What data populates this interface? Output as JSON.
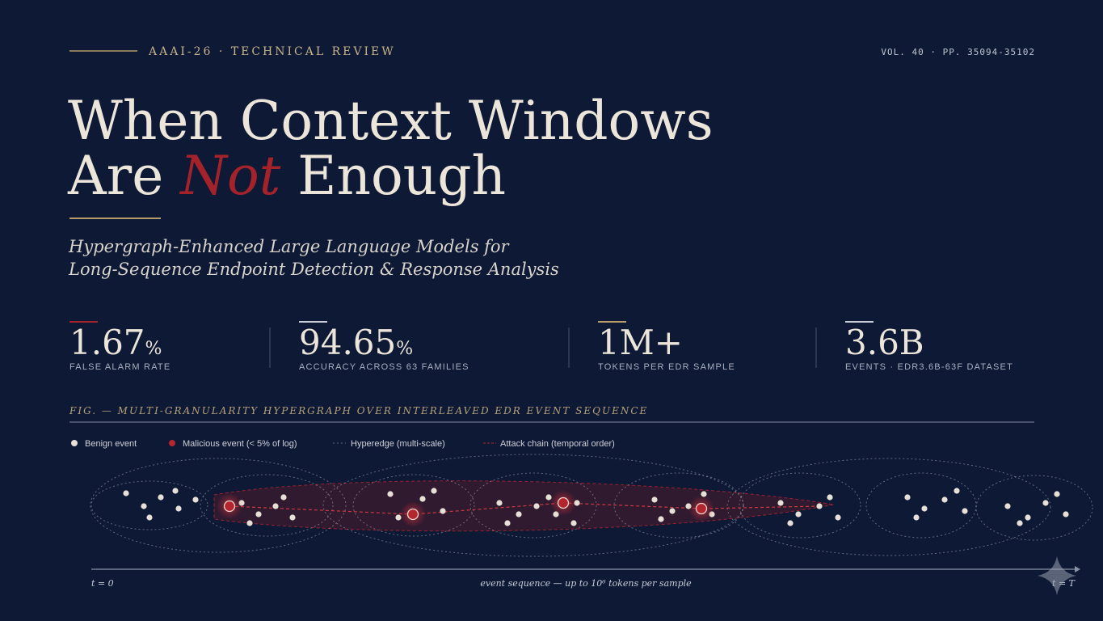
{
  "header": {
    "venue": "AAAI-26 · TECHNICAL REVIEW",
    "volume": "VOL. 40 · PP. 35094-35102"
  },
  "title": {
    "line1": "When Context Windows",
    "line2_before": "Are",
    "emphasis": "Not",
    "line2_after": "Enough"
  },
  "subtitle": {
    "line1": "Hypergraph-Enhanced Large Language Models for",
    "line2": "Long-Sequence Endpoint Detection & Response Analysis"
  },
  "stats": [
    {
      "value": "1.67",
      "unit": "%",
      "label": "FALSE ALARM RATE"
    },
    {
      "value": "94.65",
      "unit": "%",
      "label": "ACCURACY ACROSS 63 FAMILIES"
    },
    {
      "value": "1M+",
      "label": "TOKENS PER EDR SAMPLE"
    },
    {
      "value": "3.6B",
      "label": "EVENTS · EDR3.6B-63F DATASET"
    }
  ],
  "figure": {
    "caption": "FIG. — MULTI-GRANULARITY HYPERGRAPH OVER INTERLEAVED EDR EVENT SEQUENCE",
    "legend": [
      "Benign event",
      "Malicious event (< 5% of log)",
      "Hyperedge (multi-scale)",
      "Attack chain (temporal order)"
    ],
    "axis_start": "t = 0",
    "axis_label": "event sequence — up to 10⁶ tokens per sample",
    "axis_end": "t = T"
  }
}
